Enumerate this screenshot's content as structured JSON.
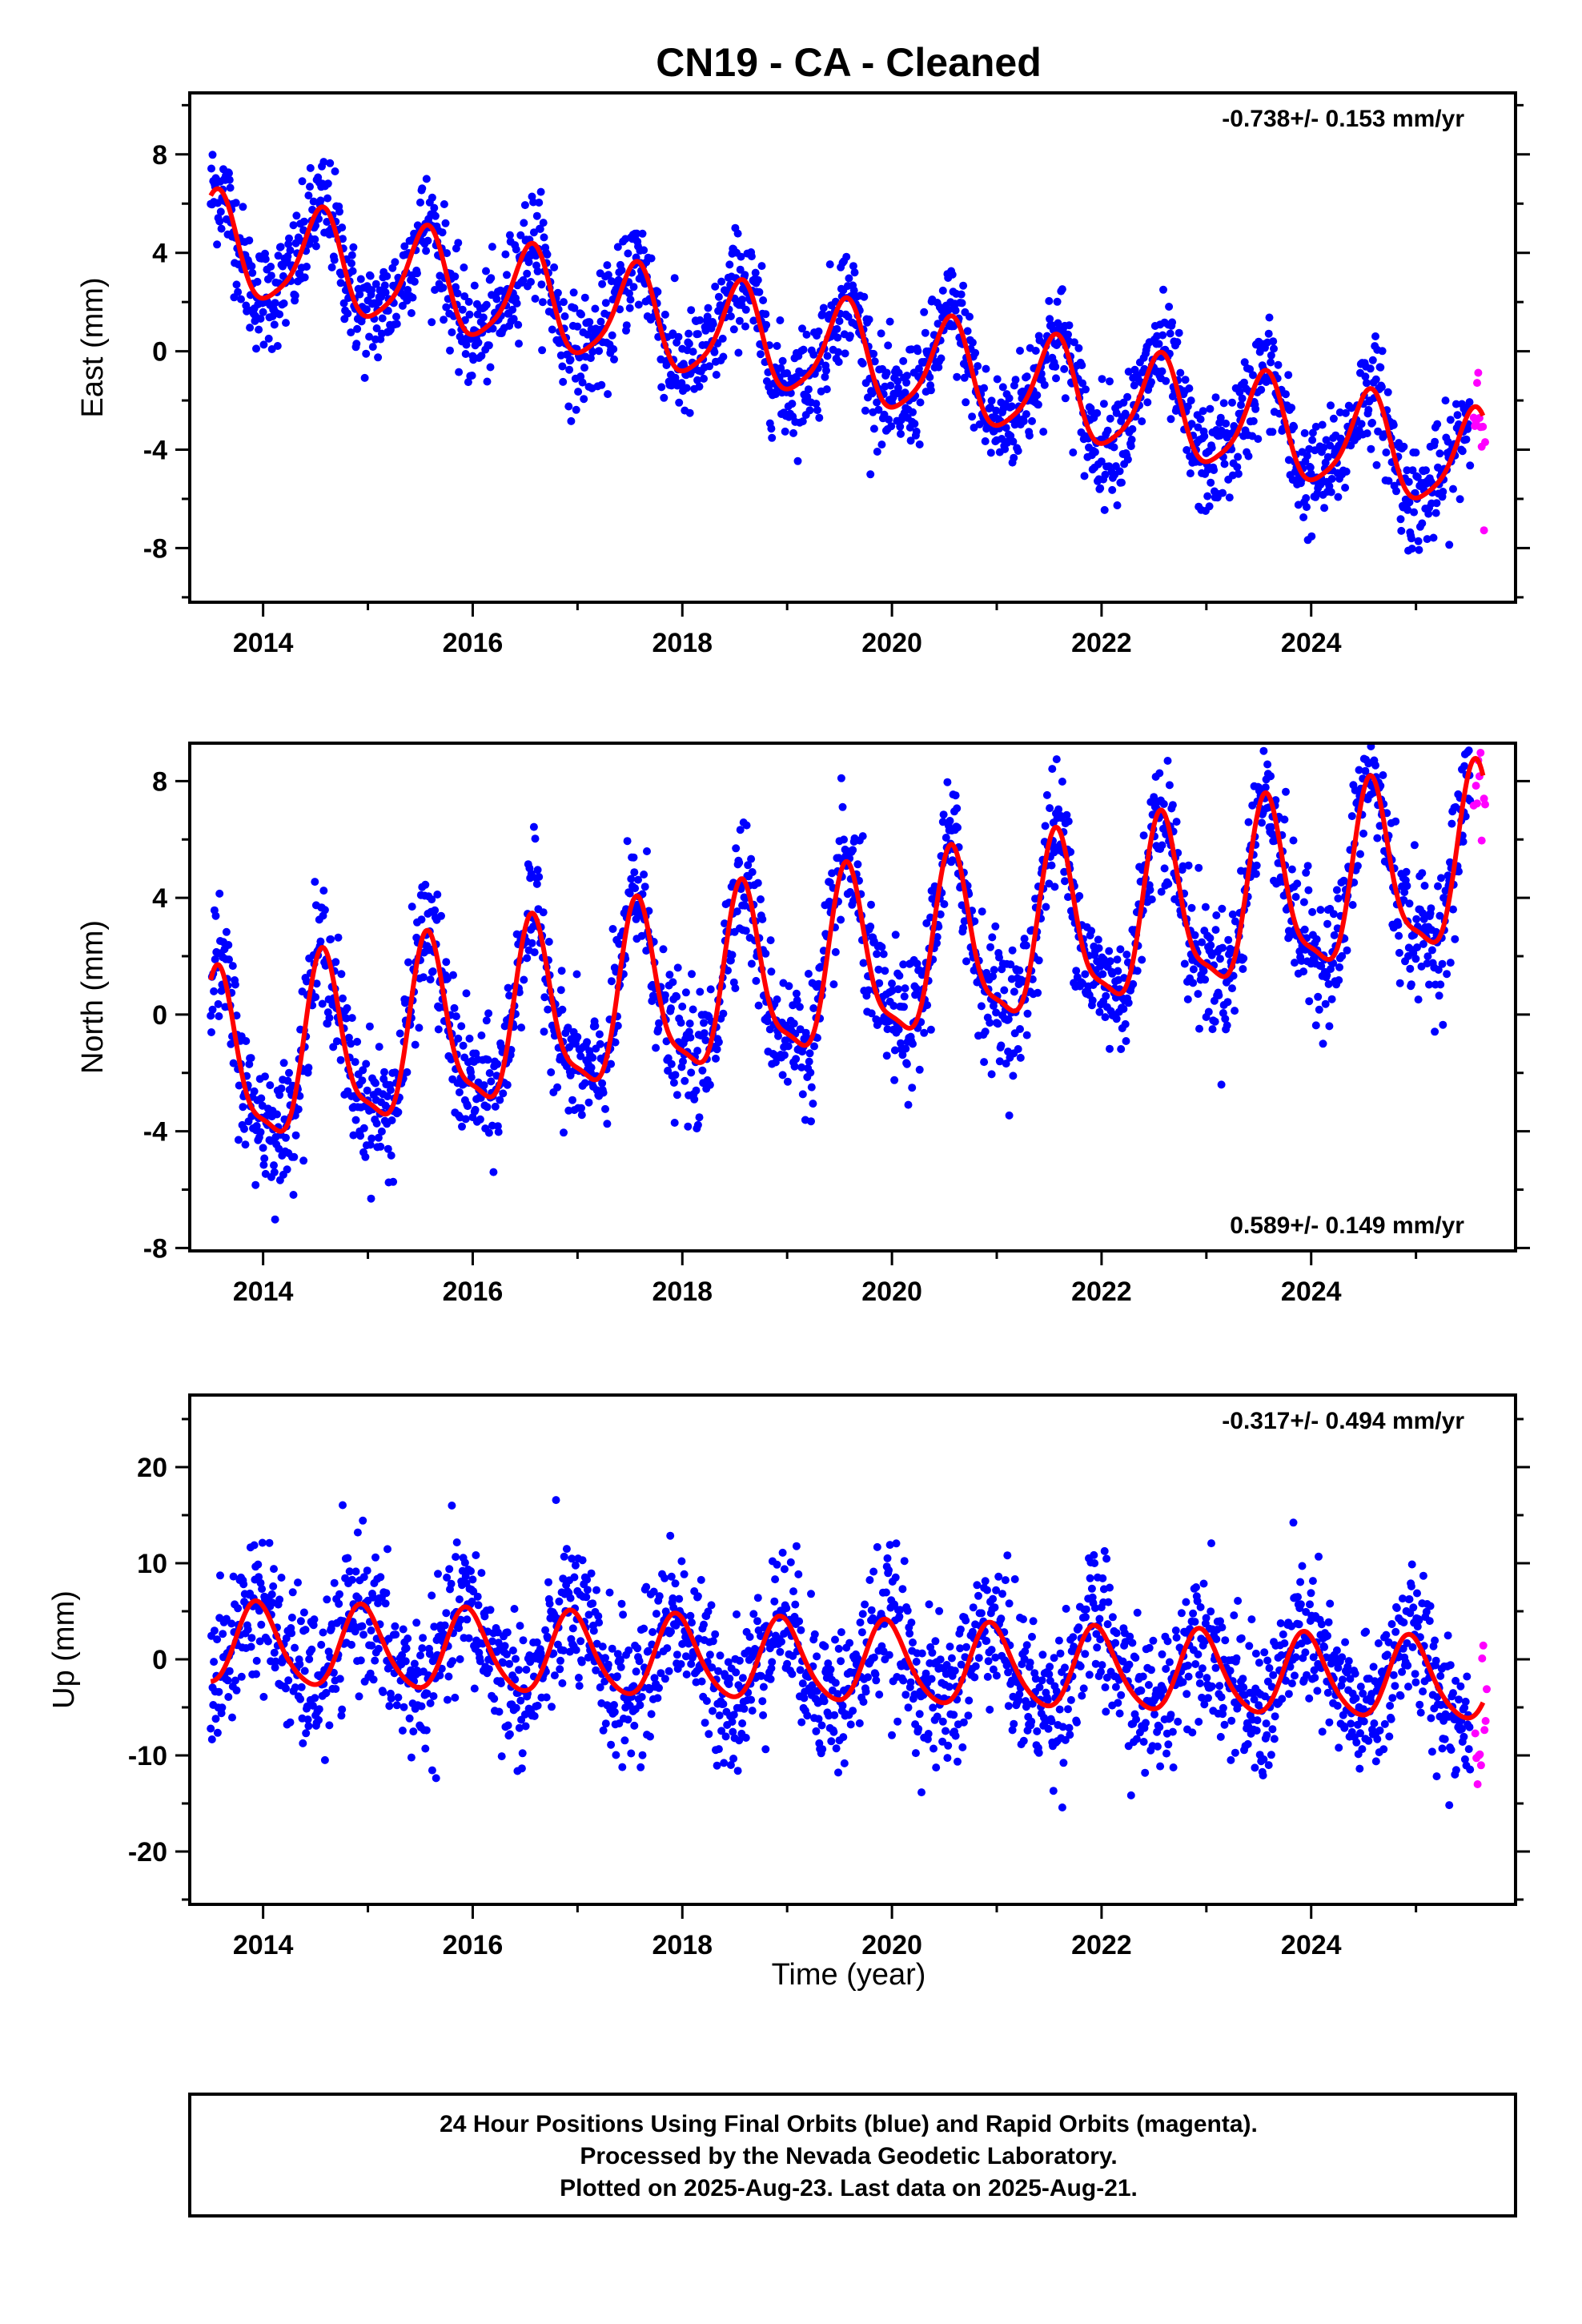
{
  "title": "CN19  - CA - Cleaned",
  "x_axis_label": "Time (year)",
  "colors": {
    "final": "#0000ff",
    "rapid": "#ff00ff",
    "model": "#ff0000",
    "frame": "#000000"
  },
  "footer": {
    "line1": "24 Hour Positions Using Final Orbits (blue) and Rapid Orbits (magenta).",
    "line2": "Processed by the Nevada Geodetic Laboratory.",
    "line3": "Plotted on 2025-Aug-23. Last data on 2025-Aug-21."
  },
  "chart_data": [
    {
      "type": "scatter",
      "component": "east",
      "ylabel": "East (mm)",
      "rate_label": "-0.738+/- 0.153 mm/yr",
      "rate_position": "top-right",
      "xlim": [
        2013.3,
        2025.95
      ],
      "ylim": [
        -10.2,
        10.5
      ],
      "xticks": [
        2014,
        2016,
        2018,
        2020,
        2022,
        2024
      ],
      "yticks": [
        -8,
        -4,
        0,
        4,
        8
      ],
      "data_start": 2013.5,
      "final_end": 2025.52,
      "rapid_start": 2025.52,
      "data_end": 2025.64,
      "model": {
        "offset": 4.3,
        "trend_mm_per_yr": -0.738,
        "annual_amp": 2.0,
        "annual_peak": 2013.55,
        "semiannual_amp": 0.4,
        "semiannual_peak": 2013.6
      },
      "scatter_sigma": 1.1,
      "series": [
        {
          "name": "Final Orbits (blue)",
          "color": "#0000ff"
        },
        {
          "name": "Rapid Orbits (magenta)",
          "color": "#ff00ff"
        },
        {
          "color": "#ff0000"
        }
      ]
    },
    {
      "type": "scatter",
      "component": "north",
      "ylabel": "North (mm)",
      "rate_label": "0.589+/- 0.149 mm/yr",
      "rate_position": "bottom-right",
      "xlim": [
        2013.3,
        2025.95
      ],
      "ylim": [
        -8.1,
        9.3
      ],
      "xticks": [
        2014,
        2016,
        2018,
        2020,
        2022,
        2024
      ],
      "yticks": [
        -8,
        -4,
        0,
        4,
        8
      ],
      "data_start": 2013.5,
      "final_end": 2025.52,
      "rapid_start": 2025.52,
      "data_end": 2025.64,
      "model": {
        "offset": -2.0,
        "trend_mm_per_yr": 0.589,
        "annual_amp": 2.9,
        "annual_peak": 2013.58,
        "semiannual_amp": 0.8,
        "semiannual_peak": 2013.55
      },
      "scatter_sigma": 1.1,
      "series": [
        {
          "name": "Final Orbits (blue)",
          "color": "#0000ff"
        },
        {
          "name": "Rapid Orbits (magenta)",
          "color": "#ff00ff"
        },
        {
          "color": "#ff0000"
        }
      ]
    },
    {
      "type": "scatter",
      "component": "up",
      "ylabel": "Up (mm)",
      "rate_label": "-0.317+/- 0.494 mm/yr",
      "rate_position": "top-right",
      "xlim": [
        2013.3,
        2025.95
      ],
      "ylim": [
        -25.5,
        27.5
      ],
      "xticks": [
        2014,
        2016,
        2018,
        2020,
        2022,
        2024
      ],
      "yticks": [
        -20,
        -10,
        0,
        10,
        20
      ],
      "data_start": 2013.5,
      "final_end": 2025.52,
      "rapid_start": 2025.52,
      "data_end": 2025.64,
      "model": {
        "offset": 1.5,
        "trend_mm_per_yr": -0.317,
        "annual_amp": 4.2,
        "annual_peak": 2013.95,
        "semiannual_amp": 0.6,
        "semiannual_peak": 2013.9
      },
      "scatter_sigma": 3.8,
      "series": [
        {
          "name": "Final Orbits (blue)",
          "color": "#0000ff"
        },
        {
          "name": "Rapid Orbits (magenta)",
          "color": "#ff00ff"
        },
        {
          "color": "#ff0000"
        }
      ]
    }
  ]
}
